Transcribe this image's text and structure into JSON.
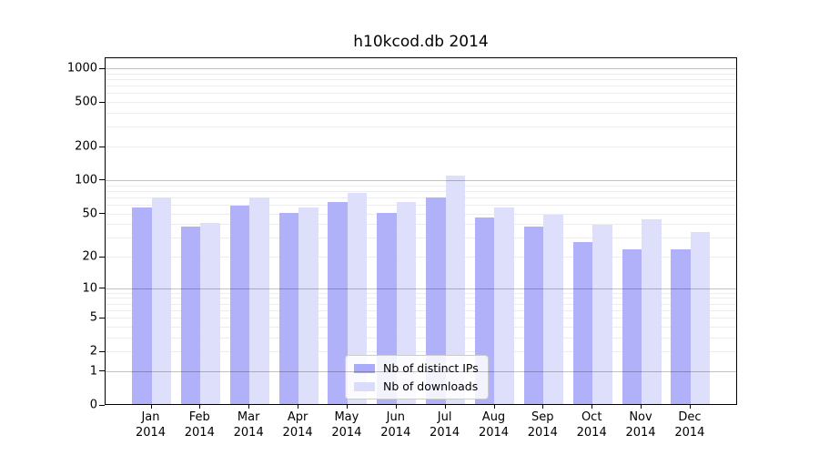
{
  "title": "h10kcod.db 2014",
  "chart_data": {
    "type": "bar",
    "title": "h10kcod.db 2014",
    "y_scale": "log10(value+1)",
    "grid": true,
    "legend_position": "bottom-center-inside",
    "categories": [
      "Jan 2014",
      "Feb 2014",
      "Mar 2014",
      "Apr 2014",
      "May 2014",
      "Jun 2014",
      "Jul 2014",
      "Aug 2014",
      "Sep 2014",
      "Oct 2014",
      "Nov 2014",
      "Dec 2014"
    ],
    "series": [
      {
        "name": "Nb of distinct IPs",
        "color": "#a9aaf9",
        "values": [
          56,
          37,
          58,
          50,
          62,
          50,
          68,
          45,
          37,
          27,
          23,
          23
        ]
      },
      {
        "name": "Nb of downloads",
        "color": "#dbdcfb",
        "values": [
          68,
          40,
          68,
          56,
          75,
          62,
          107,
          56,
          48,
          39,
          43,
          33
        ]
      }
    ],
    "y_ticks": [
      0,
      1,
      2,
      5,
      10,
      20,
      50,
      100,
      200,
      500,
      1000
    ],
    "ylim": [
      0,
      1200
    ],
    "xlabel": "",
    "ylabel": ""
  }
}
